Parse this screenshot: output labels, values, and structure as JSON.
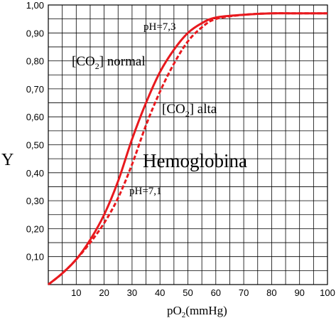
{
  "chart_data": {
    "type": "line",
    "xlabel": "pO2(mmHg)",
    "xlabel_parts": {
      "main": "pO",
      "sub": "2",
      "rest": "(mmHg)"
    },
    "ylabel": "Y",
    "xlim": [
      0,
      100
    ],
    "ylim": [
      0,
      1
    ],
    "x_ticks": [
      10,
      20,
      30,
      40,
      50,
      60,
      70,
      80,
      90,
      100
    ],
    "y_ticks": [
      "0,10",
      "0,20",
      "0,30",
      "0,40",
      "0,50",
      "0,60",
      "0,70",
      "0,80",
      "0,90",
      "1,00"
    ],
    "grid": true,
    "series": [
      {
        "name": "[CO2] normal",
        "style": "solid",
        "color": "#e8191e",
        "x": [
          0,
          5,
          10,
          15,
          20,
          25,
          30,
          35,
          40,
          45,
          50,
          55,
          60,
          70,
          80,
          90,
          100
        ],
        "y": [
          0.0,
          0.04,
          0.09,
          0.16,
          0.25,
          0.37,
          0.52,
          0.65,
          0.76,
          0.84,
          0.9,
          0.935,
          0.955,
          0.965,
          0.97,
          0.97,
          0.97
        ]
      },
      {
        "name": "[CO2] alta",
        "style": "dashed",
        "color": "#e8191e",
        "x": [
          0,
          5,
          10,
          15,
          20,
          25,
          30,
          35,
          40,
          45,
          50,
          55,
          60,
          70,
          80,
          90,
          100
        ],
        "y": [
          0.0,
          0.04,
          0.09,
          0.15,
          0.22,
          0.31,
          0.43,
          0.57,
          0.69,
          0.79,
          0.87,
          0.92,
          0.95,
          0.965,
          0.97,
          0.97,
          0.97
        ]
      }
    ],
    "annotations": {
      "ph_high": "pH=7,3",
      "ph_low": "pH=7,1",
      "co2_normal": {
        "prefix": "[CO",
        "sub": "2",
        "suffix": "] normal"
      },
      "co2_alta": {
        "prefix": "[CO",
        "sub": "2",
        "suffix": "] alta"
      },
      "title_inside": "Hemoglobina"
    }
  }
}
